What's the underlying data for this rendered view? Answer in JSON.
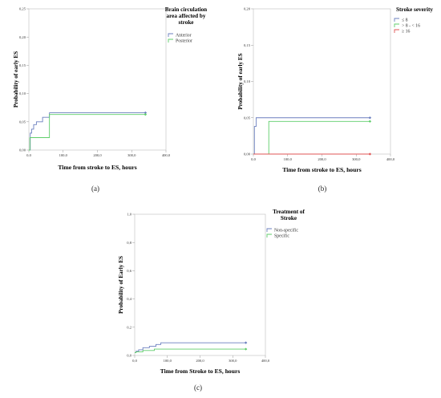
{
  "panels": [
    {
      "caption": "(a)",
      "ylabel": "Probability of early ES",
      "xlabel": "Time from stroke to ES, hours",
      "legend_title": [
        "Brain circulation",
        "area affected by",
        "stroke"
      ],
      "chart_data": {
        "type": "line",
        "step": true,
        "xlim": [
          0,
          400
        ],
        "ylim": [
          0,
          0.25
        ],
        "xticks": [
          "0,0",
          "100,0",
          "200,0",
          "300,0",
          "400,0"
        ],
        "yticks": [
          "0,00",
          "0,05",
          "0,10",
          "0,15",
          "0,20",
          "0,25"
        ],
        "ytick_values": [
          0,
          0.05,
          0.1,
          0.15,
          0.2,
          0.25
        ],
        "grid": false,
        "legend_position": "top-right",
        "series": [
          {
            "name": "Anterior",
            "color": "#6b7fbf",
            "x": [
              0,
              4,
              8,
              14,
              22,
              40,
              60,
              340
            ],
            "y": [
              0,
              0.03,
              0.037,
              0.045,
              0.05,
              0.058,
              0.066,
              0.066
            ],
            "end_marker": true
          },
          {
            "name": "Posterior",
            "color": "#5fce6a",
            "x": [
              0,
              3,
              22,
              60,
              340
            ],
            "y": [
              0,
              0.022,
              0.022,
              0.063,
              0.063
            ],
            "end_marker": true
          }
        ]
      }
    },
    {
      "caption": "(b)",
      "ylabel": "Probability of early ES",
      "xlabel": "Time from stroke to ES, hours",
      "legend_title": [
        "Stroke severity"
      ],
      "chart_data": {
        "type": "line",
        "step": true,
        "xlim": [
          0,
          400
        ],
        "ylim": [
          0,
          0.2
        ],
        "xticks": [
          "0,0",
          "100,0",
          "200,0",
          "300,0",
          "400,0"
        ],
        "yticks": [
          "0,00",
          "0,05",
          "0,10",
          "0,15",
          "0,20"
        ],
        "ytick_values": [
          0,
          0.05,
          0.1,
          0.15,
          0.2
        ],
        "grid": false,
        "legend_position": "top-right",
        "series": [
          {
            "name": "≤ 8",
            "color": "#6b7fbf",
            "x": [
              0,
              3,
              8,
              340
            ],
            "y": [
              0,
              0.038,
              0.05,
              0.05
            ],
            "end_marker": true
          },
          {
            "name": "> 8 - < 16",
            "color": "#5fce6a",
            "x": [
              0,
              45,
              340
            ],
            "y": [
              0,
              0.045,
              0.045
            ],
            "end_marker": true
          },
          {
            "name": "≥ 16",
            "color": "#e05555",
            "x": [
              0,
              340
            ],
            "y": [
              0,
              0
            ],
            "end_marker": true
          }
        ]
      }
    },
    {
      "caption": "(c)",
      "ylabel": "Probability of Early ES",
      "xlabel": "Time from Stroke to ES, hours",
      "legend_title": [
        "Treatment of",
        "Stroke"
      ],
      "chart_data": {
        "type": "line",
        "step": true,
        "xlim": [
          0,
          400
        ],
        "ylim": [
          0,
          1.0
        ],
        "xticks": [
          "0,0",
          "100,0",
          "200,0",
          "300,0",
          "400,0"
        ],
        "yticks": [
          "0,0",
          "0,2",
          "0,4",
          "0,6",
          "0,8",
          "1,0"
        ],
        "ytick_values": [
          0,
          0.2,
          0.4,
          0.6,
          0.8,
          1.0
        ],
        "grid": false,
        "legend_position": "top-right",
        "series": [
          {
            "name": "Non-specific",
            "color": "#6b7fbf",
            "x": [
              0,
              4,
              12,
              25,
              45,
              65,
              80,
              340
            ],
            "y": [
              0.02,
              0.03,
              0.04,
              0.055,
              0.065,
              0.078,
              0.09,
              0.09
            ],
            "end_marker": true
          },
          {
            "name": "Specific",
            "color": "#5fce6a",
            "x": [
              0,
              4,
              25,
              60,
              340
            ],
            "y": [
              0.02,
              0.025,
              0.035,
              0.045,
              0.045
            ],
            "end_marker": true
          }
        ]
      }
    }
  ]
}
